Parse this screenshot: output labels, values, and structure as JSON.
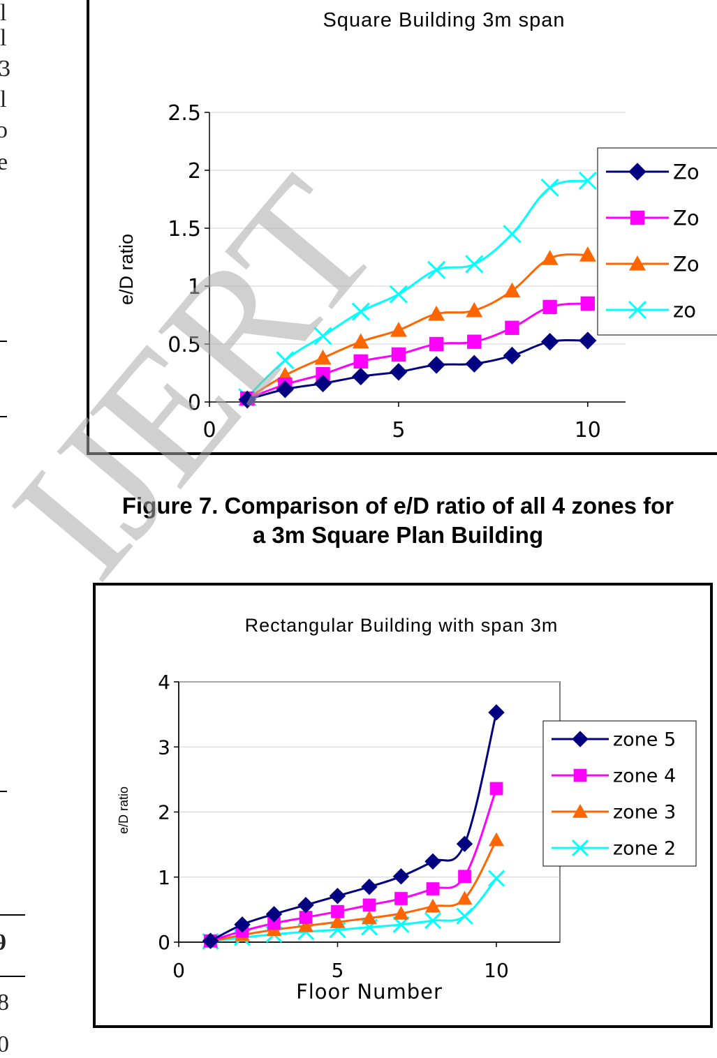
{
  "caption": {
    "line1": "Figure 7. Comparison of e/D ratio of all 4 zones for",
    "line2": "a 3m Square Plan Building"
  },
  "watermark": "IJERT",
  "margin_fragments": [
    "l",
    "l",
    "3",
    "l",
    "o",
    "e",
    "9",
    "8",
    "0"
  ],
  "chart_data": [
    {
      "type": "line",
      "title": "Square Building 3m span",
      "xlabel": "",
      "ylabel": "e/D ratio",
      "xlim": [
        0,
        11
      ],
      "ylim": [
        0,
        2.5
      ],
      "xticks": [
        "0",
        "5",
        "10"
      ],
      "yticks": [
        "0",
        "0.5",
        "1",
        "1.5",
        "2",
        "2.5"
      ],
      "grid": true,
      "legend": "right",
      "x": [
        1,
        2,
        3,
        4,
        5,
        6,
        7,
        8,
        9,
        10
      ],
      "series": [
        {
          "name": "Zo",
          "marker": "diamond",
          "color": "#000080",
          "values": [
            0.02,
            0.11,
            0.16,
            0.22,
            0.26,
            0.32,
            0.33,
            0.4,
            0.52,
            0.53
          ]
        },
        {
          "name": "Zo",
          "marker": "square",
          "color": "#ff00ff",
          "values": [
            0.03,
            0.15,
            0.24,
            0.35,
            0.41,
            0.5,
            0.52,
            0.64,
            0.82,
            0.85
          ]
        },
        {
          "name": "Zo",
          "marker": "triangle",
          "color": "#ff6600",
          "values": [
            0.03,
            0.23,
            0.38,
            0.52,
            0.62,
            0.76,
            0.79,
            0.96,
            1.24,
            1.27
          ]
        },
        {
          "name": "zo",
          "marker": "x",
          "color": "#00ffff",
          "values": [
            0.04,
            0.36,
            0.57,
            0.78,
            0.93,
            1.14,
            1.19,
            1.45,
            1.85,
            1.91
          ]
        }
      ]
    },
    {
      "type": "line",
      "title": "Rectangular Building with span 3m",
      "xlabel": "Floor Number",
      "ylabel": "e/D ratio",
      "xlim": [
        0,
        12
      ],
      "ylim": [
        0,
        4
      ],
      "xticks": [
        "0",
        "5",
        "10"
      ],
      "yticks": [
        "0",
        "1",
        "2",
        "3",
        "4"
      ],
      "grid": true,
      "legend": "right",
      "x": [
        1,
        2,
        3,
        4,
        5,
        6,
        7,
        8,
        9,
        10
      ],
      "series": [
        {
          "name": "zone 5",
          "marker": "diamond",
          "color": "#000080",
          "values": [
            0.02,
            0.27,
            0.43,
            0.57,
            0.71,
            0.85,
            1.01,
            1.24,
            1.51,
            3.53
          ]
        },
        {
          "name": "zone 4",
          "marker": "square",
          "color": "#ff00ff",
          "values": [
            0.02,
            0.17,
            0.29,
            0.38,
            0.47,
            0.57,
            0.67,
            0.82,
            1.01,
            2.36
          ]
        },
        {
          "name": "zone 3",
          "marker": "triangle",
          "color": "#ff6600",
          "values": [
            0.01,
            0.11,
            0.19,
            0.25,
            0.31,
            0.37,
            0.44,
            0.55,
            0.67,
            1.57
          ]
        },
        {
          "name": "zone 2",
          "marker": "x",
          "color": "#00ffff",
          "values": [
            0.01,
            0.07,
            0.12,
            0.16,
            0.19,
            0.23,
            0.27,
            0.33,
            0.4,
            0.98
          ]
        }
      ]
    }
  ]
}
